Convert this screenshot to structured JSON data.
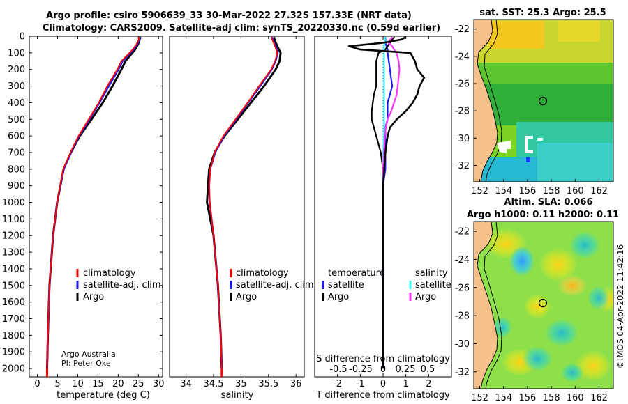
{
  "title_line1": "Argo profile: csiro 5906639_33 30-Mar-2022 27.32S 157.33E (NRT data)",
  "title_line2": "Climatology: CARS2009. Satellite-adj clim: synTS_20220330.nc (0.59d earlier)",
  "credit": [
    "Argo Australia",
    "PI: Peter Oke"
  ],
  "stamp": "©IMOS 04-Apr-2022 11:42:16",
  "colors": {
    "climatology": "#ff0000",
    "satellite": "#1a1aff",
    "argo": "#000000",
    "sat_temp": "#33ffff",
    "sat_sal": "#ff33ff",
    "land": "#f5c08a"
  },
  "chart_data": [
    {
      "type": "line",
      "id": "temp",
      "xlabel": "temperature (deg C)",
      "ylabel": "",
      "xlim": [
        -2,
        31
      ],
      "ylim": [
        0,
        2050
      ],
      "xticks": [
        0,
        5,
        10,
        15,
        20,
        25,
        30
      ],
      "yticks": [
        0,
        100,
        200,
        300,
        400,
        500,
        600,
        700,
        800,
        900,
        1000,
        1100,
        1200,
        1300,
        1400,
        1500,
        1600,
        1700,
        1800,
        1900,
        2000
      ],
      "legend": [
        "climatology",
        "satellite-adj. clim.",
        "Argo"
      ],
      "depth": [
        5,
        20,
        50,
        80,
        100,
        150,
        200,
        300,
        400,
        500,
        600,
        700,
        800,
        1000,
        1200,
        1500,
        1800,
        2000,
        2050
      ],
      "series": [
        {
          "name": "climatology",
          "values": [
            25.2,
            25.1,
            24.5,
            23.6,
            22.8,
            20.8,
            19.8,
            17.3,
            15.2,
            12.7,
            10.2,
            8.2,
            6.4,
            4.9,
            3.9,
            3.0,
            2.6,
            2.4,
            2.4
          ]
        },
        {
          "name": "satellite-adj. clim.",
          "values": [
            25.3,
            25.2,
            24.7,
            23.8,
            23.0,
            21.1,
            20.1,
            17.7,
            15.4,
            12.9,
            10.3,
            8.3,
            6.5,
            4.9,
            3.9,
            3.0,
            2.6,
            2.4,
            2.4
          ]
        },
        {
          "name": "Argo",
          "values": [
            25.5,
            25.3,
            24.9,
            24.2,
            23.5,
            21.8,
            20.8,
            18.6,
            16.2,
            13.4,
            10.5,
            8.3,
            6.5,
            4.9,
            3.9,
            3.0,
            2.6,
            2.4,
            null
          ]
        }
      ]
    },
    {
      "type": "line",
      "id": "sal",
      "xlabel": "salinity",
      "xlim": [
        33.7,
        36.15
      ],
      "ylim": [
        0,
        2050
      ],
      "xticks": [
        34,
        34.5,
        35,
        35.5,
        36
      ],
      "legend": [
        "climatology",
        "satellite-adj. clim.",
        "Argo"
      ],
      "depth": [
        5,
        30,
        60,
        100,
        150,
        200,
        300,
        400,
        500,
        600,
        700,
        800,
        900,
        1000,
        1200,
        1500,
        1800,
        2000,
        2050
      ],
      "series": [
        {
          "name": "climatology",
          "values": [
            35.55,
            35.58,
            35.62,
            35.66,
            35.62,
            35.55,
            35.33,
            35.12,
            34.9,
            34.68,
            34.52,
            34.44,
            34.42,
            34.43,
            34.5,
            34.58,
            34.63,
            34.65,
            34.65
          ]
        },
        {
          "name": "satellite-adj. clim.",
          "values": [
            35.56,
            35.59,
            35.63,
            35.67,
            35.63,
            35.56,
            35.35,
            35.13,
            34.91,
            34.69,
            34.53,
            34.44,
            34.42,
            34.43,
            34.5,
            34.58,
            34.63,
            34.65,
            34.65
          ]
        },
        {
          "name": "Argo",
          "values": [
            35.6,
            35.62,
            35.66,
            35.72,
            35.7,
            35.63,
            35.42,
            35.18,
            34.94,
            34.7,
            34.52,
            34.42,
            34.4,
            34.38,
            34.5,
            34.58,
            34.63,
            34.65,
            null
          ]
        }
      ]
    },
    {
      "type": "line",
      "id": "diff",
      "xlabel": "T difference from climatology",
      "xlabel2": "S difference from climatology",
      "xlim": [
        -3,
        3
      ],
      "ylim": [
        0,
        2050
      ],
      "xticks": [
        -2,
        -1,
        0,
        1,
        2
      ],
      "xticks2": [
        "-0.5",
        "-0.25",
        "0",
        "0.25",
        "0.5"
      ],
      "legend_temperature": {
        "title": "temperature",
        "items": [
          "satellite",
          "Argo"
        ]
      },
      "legend_salinity": {
        "title": "salinity",
        "items": [
          "satellite",
          "Argo"
        ]
      },
      "depth": [
        5,
        20,
        40,
        60,
        80,
        100,
        150,
        200,
        250,
        300,
        350,
        400,
        450,
        500,
        550,
        600,
        700,
        800,
        900,
        1000,
        1200,
        1500,
        1800,
        2000
      ],
      "series": [
        {
          "name": "temperature satellite",
          "values": [
            0.1,
            0.1,
            0.1,
            0.15,
            0.2,
            0.2,
            0.25,
            0.3,
            0.35,
            0.4,
            0.3,
            0.2,
            0.2,
            0.2,
            0.1,
            0.1,
            0.1,
            0.1,
            0.0,
            0.0,
            0.0,
            0.0,
            0.0,
            0.0
          ]
        },
        {
          "name": "temperature Argo",
          "values": [
            0.5,
            0.4,
            0.3,
            0.2,
            0.1,
            -0.2,
            -0.3,
            -0.3,
            -0.3,
            -0.3,
            -0.4,
            -0.45,
            -0.5,
            -0.5,
            -0.4,
            -0.3,
            -0.1,
            0.0,
            0.0,
            0.0,
            0.0,
            0.0,
            0.0,
            0.0
          ]
        },
        {
          "name": "salinity satellite",
          "values": [
            0.02,
            0.02,
            0.02,
            0.01,
            0.01,
            0.01,
            0.01,
            0.01,
            0.01,
            0.01,
            0.01,
            0.01,
            0.01,
            0.01,
            0.01,
            0.01,
            0.0,
            0.0,
            0.0,
            0.0,
            0.0,
            0.0,
            0.0,
            0.0
          ]
        },
        {
          "name": "salinity Argo",
          "values": [
            0.1,
            0.08,
            0.06,
            0.1,
            0.12,
            0.15,
            0.17,
            0.18,
            0.17,
            0.16,
            0.15,
            0.12,
            0.09,
            0.05,
            0.03,
            0.02,
            0.01,
            0.0,
            0.0,
            0.0,
            0.0,
            0.0,
            0.0,
            0.0
          ]
        },
        {
          "name": "combined Argo",
          "values": [
            1.0,
            0.8,
            0.0,
            -1.5,
            -1.0,
            1.2,
            1.4,
            1.5,
            1.8,
            1.6,
            1.5,
            1.3,
            1.0,
            0.6,
            0.3,
            0.2,
            0.1,
            0.05,
            0.0,
            0.0,
            0.0,
            0.0,
            0.0,
            0.0
          ]
        }
      ]
    },
    {
      "type": "heatmap",
      "id": "sst",
      "title": "sat. SST: 25.3 Argo: 25.5",
      "xlim": [
        151.5,
        163.2
      ],
      "ylim": [
        -33.2,
        -21.3
      ],
      "xticks": [
        152,
        154,
        156,
        158,
        160,
        162
      ],
      "yticks": [
        -22,
        -24,
        -26,
        -28,
        -30,
        -32
      ],
      "profile_location": [
        157.33,
        -27.32
      ]
    },
    {
      "type": "heatmap",
      "id": "sla",
      "title": "Altim. SLA: 0.066",
      "subtitle": "Argo h1000: 0.11 h2000: 0.11",
      "xlim": [
        151.5,
        163.2
      ],
      "ylim": [
        -33.2,
        -21.3
      ],
      "xticks": [
        152,
        154,
        156,
        158,
        160,
        162
      ],
      "yticks": [
        -22,
        -24,
        -26,
        -28,
        -30,
        -32
      ],
      "profile_location": [
        157.33,
        -27.32
      ]
    }
  ]
}
